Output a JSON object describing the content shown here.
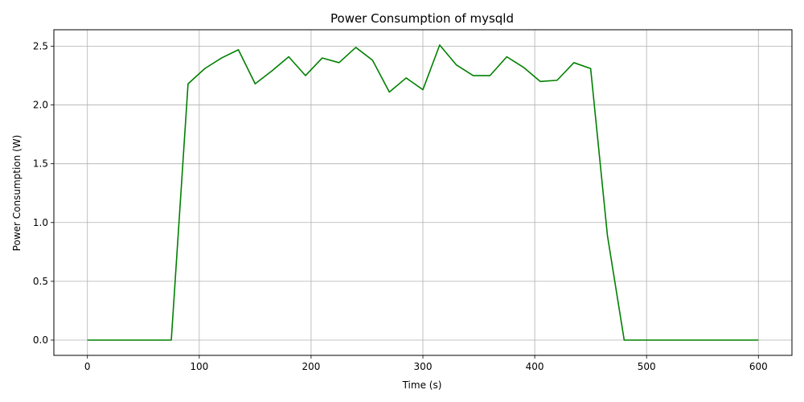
{
  "chart_data": {
    "type": "line",
    "title": "Power Consumption of mysqld",
    "xlabel": "Time (s)",
    "ylabel": "Power Consumption (W)",
    "xlim": [
      -30,
      630
    ],
    "ylim": [
      -0.13,
      2.64
    ],
    "xticks": [
      0,
      100,
      200,
      300,
      400,
      500,
      600
    ],
    "xtick_labels": [
      "0",
      "100",
      "200",
      "300",
      "400",
      "500",
      "600"
    ],
    "yticks": [
      0.0,
      0.5,
      1.0,
      1.5,
      2.0,
      2.5
    ],
    "ytick_labels": [
      "0.0",
      "0.5",
      "1.0",
      "1.5",
      "2.0",
      "2.5"
    ],
    "grid": true,
    "series": [
      {
        "name": "mysqld",
        "color": "#008000",
        "x": [
          0,
          15,
          30,
          45,
          60,
          75,
          90,
          105,
          120,
          135,
          150,
          165,
          180,
          195,
          210,
          225,
          240,
          255,
          270,
          285,
          300,
          315,
          330,
          345,
          360,
          375,
          390,
          405,
          420,
          435,
          450,
          465,
          480,
          495,
          510,
          525,
          540,
          555,
          570,
          585,
          600
        ],
        "y": [
          0,
          0,
          0,
          0,
          0,
          0,
          2.18,
          2.31,
          2.4,
          2.47,
          2.18,
          2.29,
          2.41,
          2.25,
          2.4,
          2.36,
          2.49,
          2.38,
          2.11,
          2.23,
          2.13,
          2.51,
          2.34,
          2.25,
          2.25,
          2.41,
          2.32,
          2.2,
          2.21,
          2.36,
          2.31,
          0.89,
          0,
          0,
          0,
          0,
          0,
          0,
          0,
          0,
          0
        ]
      }
    ]
  }
}
